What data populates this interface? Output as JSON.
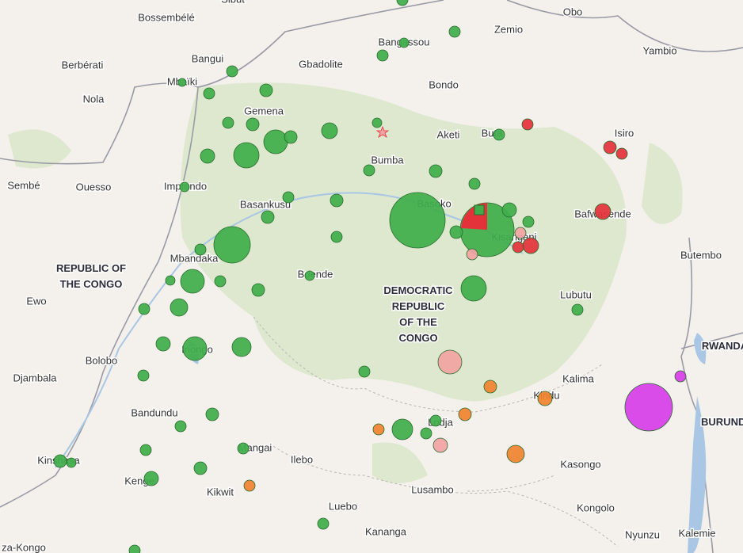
{
  "map": {
    "labels": [
      "Sibut",
      "Bossembélé",
      "Zemio",
      "Obo",
      "Bangassou",
      "Yambio",
      "Berbérati",
      "Bangui",
      "Gbadolite",
      "Bondo",
      "Mbaïki",
      "Nola",
      "Gemena",
      "Aketi",
      "Buta",
      "Isiro",
      "Bumba",
      "Sembé",
      "Ouesso",
      "Impfondo",
      "Basankusu",
      "Basoko",
      "Bafwasende",
      "Kisangani",
      "Butembo",
      "Mbandaka",
      "Boende",
      "Ewo",
      "Lubutu",
      "Inongo",
      "Bolobo",
      "Djambala",
      "Kalima",
      "Kindu",
      "Bandundu",
      "Lodja",
      "Mangai",
      "Ilebo",
      "Kasongo",
      "Kinshasa",
      "Kenge",
      "Kikwit",
      "Lusambo",
      "Kongolo",
      "Luebo",
      "Kananga",
      "Nyunzu",
      "Kalemie",
      "za-Kongo"
    ],
    "regions": [
      [
        "REPUBLIC OF",
        "THE CONGO"
      ],
      [
        "DEMOCRATIC",
        "REPUBLIC",
        "OF THE",
        "CONGO"
      ],
      [
        "RWANDA"
      ],
      [
        "BURUNDI"
      ]
    ]
  }
}
